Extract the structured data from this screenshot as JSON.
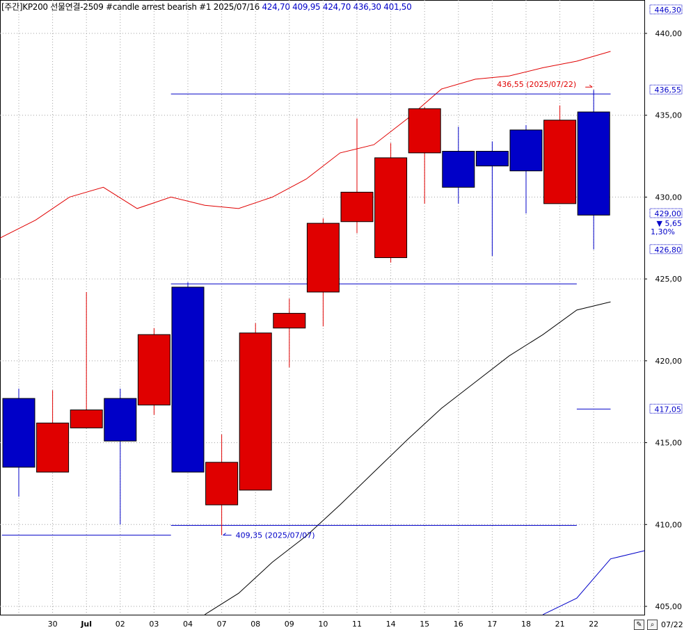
{
  "header": {
    "title": "[주간]KP200 선물연결-2509 #candle arrest bearish #1",
    "date": "2025/07/16",
    "ohlc": "424,70 409,95 424,70 436,30 401,50"
  },
  "chart_data": {
    "type": "candlestick",
    "x_labels": [
      "",
      "30",
      "Jul",
      "02",
      "03",
      "04",
      "07",
      "08",
      "09",
      "10",
      "11",
      "14",
      "15",
      "16",
      "17",
      "18",
      "21",
      "22"
    ],
    "ylim": [
      404.3,
      446.9
    ],
    "y_ticks": [
      405,
      410,
      415,
      420,
      425,
      430,
      435,
      440
    ],
    "y_tick_labels": [
      "405,00",
      "410,00",
      "415,00",
      "420,00",
      "425,00",
      "430,00",
      "435,00",
      "440,00"
    ],
    "candles": [
      {
        "open": 417.7,
        "close": 413.5,
        "high": 418.3,
        "low": 411.7
      },
      {
        "open": 413.2,
        "close": 416.2,
        "high": 418.2,
        "low": 413.2
      },
      {
        "open": 415.9,
        "close": 417.0,
        "high": 424.2,
        "low": 415.9
      },
      {
        "open": 417.7,
        "close": 415.1,
        "high": 418.3,
        "low": 410.0
      },
      {
        "open": 417.3,
        "close": 421.6,
        "high": 422.0,
        "low": 416.7
      },
      {
        "open": 424.5,
        "close": 413.2,
        "high": 424.8,
        "low": 413.2
      },
      {
        "open": 411.2,
        "close": 413.8,
        "high": 415.5,
        "low": 409.35
      },
      {
        "open": 412.1,
        "close": 421.7,
        "high": 422.3,
        "low": 412.1
      },
      {
        "open": 422.0,
        "close": 422.9,
        "high": 423.8,
        "low": 419.6
      },
      {
        "open": 424.2,
        "close": 428.4,
        "high": 428.7,
        "low": 422.1
      },
      {
        "open": 428.5,
        "close": 430.3,
        "high": 434.8,
        "low": 427.8
      },
      {
        "open": 426.3,
        "close": 432.4,
        "high": 433.3,
        "low": 426.0
      },
      {
        "open": 432.7,
        "close": 435.4,
        "high": 435.5,
        "low": 429.6
      },
      {
        "open": 432.8,
        "close": 430.6,
        "high": 434.3,
        "low": 429.6
      },
      {
        "open": 432.8,
        "close": 431.9,
        "high": 433.4,
        "low": 426.4
      },
      {
        "open": 434.1,
        "close": 431.6,
        "high": 434.4,
        "low": 429.0
      },
      {
        "open": 429.6,
        "close": 434.7,
        "high": 435.6,
        "low": 429.6
      },
      {
        "open": 435.2,
        "close": 428.9,
        "high": 436.55,
        "low": 426.8
      }
    ],
    "upper_band": [
      427.5,
      428.6,
      430.0,
      430.6,
      429.3,
      430.0,
      429.5,
      429.3,
      430.0,
      431.1,
      432.7,
      433.2,
      434.8,
      436.6,
      437.2,
      437.4,
      437.9,
      438.3,
      438.9
    ],
    "lower_band": [
      null,
      null,
      null,
      null,
      null,
      null,
      404.5,
      405.8,
      407.7,
      409.3,
      411.2,
      413.2,
      415.2,
      417.1,
      418.7,
      420.3,
      421.6,
      423.1,
      423.6
    ],
    "blue_line": [
      null,
      null,
      null,
      null,
      null,
      null,
      null,
      null,
      null,
      null,
      null,
      null,
      null,
      null,
      null,
      null,
      404.5,
      405.5,
      407.9,
      408.4
    ],
    "hlines": [
      {
        "y": 436.3,
        "from": 4.5,
        "to": 17.5,
        "color": "#0000c8"
      },
      {
        "y": 424.7,
        "from": 4.5,
        "to": 16.5,
        "color": "#0000c8"
      },
      {
        "y": 409.95,
        "from": 4.5,
        "to": 16.5,
        "color": "#0000c8"
      },
      {
        "y": 409.35,
        "from": -0.5,
        "to": 4.5,
        "color": "#0000c8"
      },
      {
        "y": 417.05,
        "from": 16.5,
        "to": 17.5,
        "color": "#0000c8"
      }
    ],
    "annotations": [
      {
        "text": "436,55 (2025/07/22)",
        "index": 17,
        "y": 436.55,
        "color": "#e00000"
      },
      {
        "text": "409,35 (2025/07/07)",
        "index": 6,
        "y": 409.35,
        "color": "#0000c8"
      }
    ],
    "axis_markers": [
      {
        "y": 446.3,
        "label": "446,30",
        "boxed": true
      },
      {
        "y": 436.55,
        "label": "436,55",
        "boxed": true
      },
      {
        "y": 429.0,
        "label": "429,00",
        "boxed": true
      },
      {
        "y": 426.8,
        "label": "426,80",
        "boxed": true
      },
      {
        "y": 417.05,
        "label": "417,05",
        "boxed": true
      }
    ],
    "change_labels": {
      "change": "▼ 5,65",
      "percent": "1,30%"
    }
  },
  "toolbar": {
    "date_label": "07/22",
    "zoom_icon": "magnifier-icon",
    "pen_icon": "pen-icon"
  },
  "colors": {
    "up": "#e00000",
    "down": "#0000c8",
    "grid": "#a0a0a0",
    "lower_band": "#000000"
  }
}
